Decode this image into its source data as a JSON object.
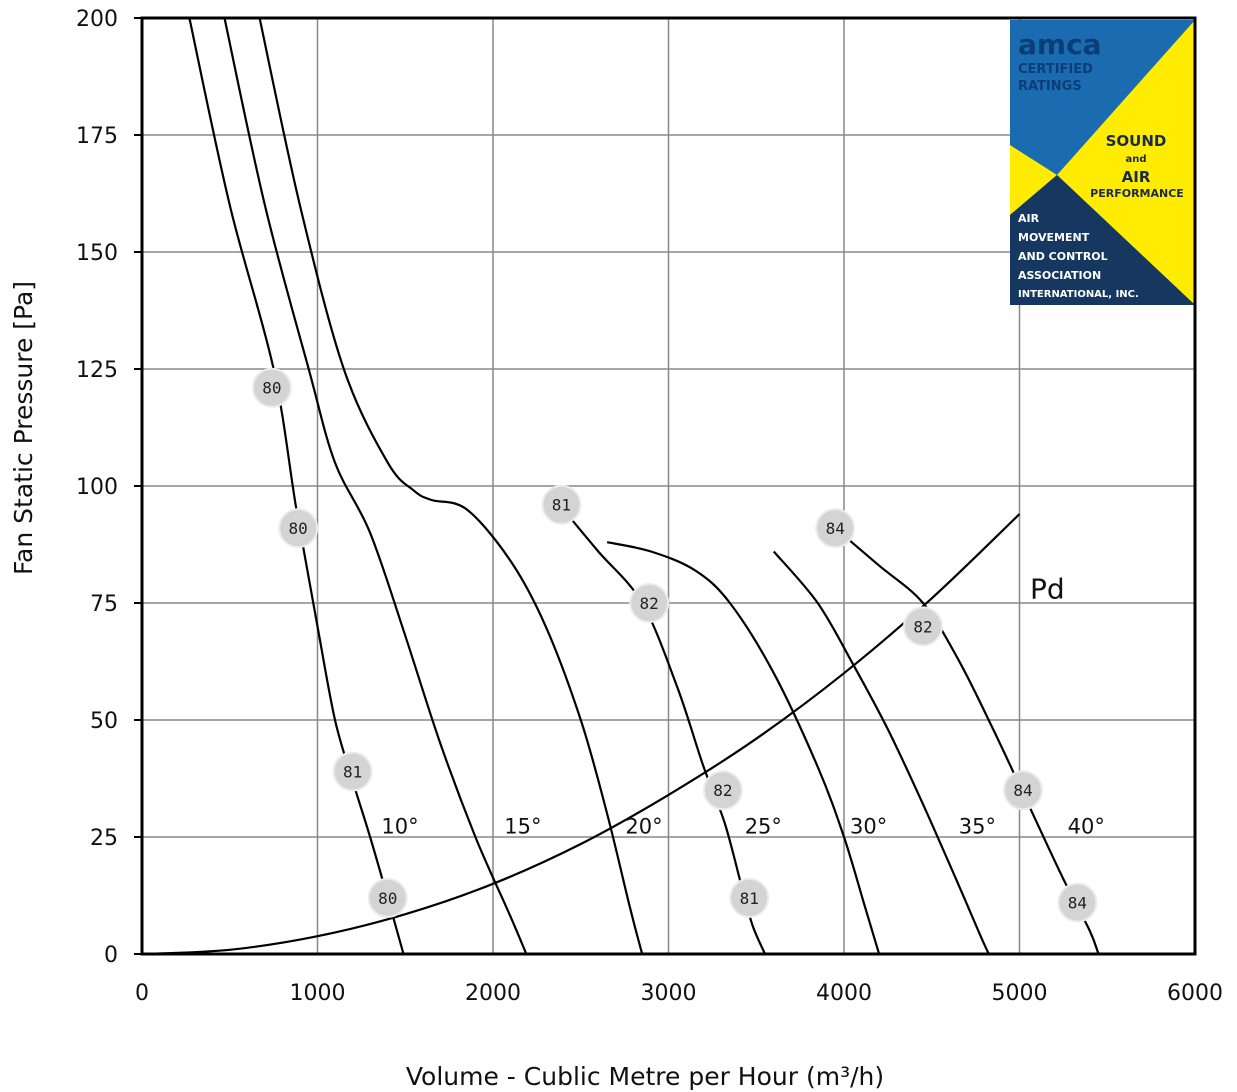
{
  "chart_data": {
    "type": "line",
    "xlabel": "Volume - Cublic Metre per Hour (m³/h)",
    "ylabel": "Fan Static Pressure [Pa]",
    "xlim": [
      0,
      6000
    ],
    "ylim": [
      0,
      200
    ],
    "x_ticks": [
      "0",
      "1000",
      "2000",
      "3000",
      "4000",
      "5000",
      "6000"
    ],
    "y_ticks": [
      "0",
      "25",
      "50",
      "75",
      "100",
      "125",
      "150",
      "175",
      "200"
    ],
    "grid": true,
    "series": [
      {
        "name": "10°",
        "points": [
          [
            270,
            200
          ],
          [
            500,
            160
          ],
          [
            750,
            125
          ],
          [
            880,
            95
          ],
          [
            1000,
            70
          ],
          [
            1100,
            50
          ],
          [
            1200,
            37
          ],
          [
            1300,
            25
          ],
          [
            1400,
            12
          ],
          [
            1490,
            0
          ]
        ]
      },
      {
        "name": "15°",
        "points": [
          [
            470,
            200
          ],
          [
            700,
            160
          ],
          [
            950,
            125
          ],
          [
            1100,
            105
          ],
          [
            1300,
            90
          ],
          [
            1500,
            68
          ],
          [
            1700,
            45
          ],
          [
            1900,
            25
          ],
          [
            2100,
            8
          ],
          [
            2190,
            0
          ]
        ]
      },
      {
        "name": "20°",
        "points": [
          [
            670,
            200
          ],
          [
            900,
            160
          ],
          [
            1150,
            125
          ],
          [
            1400,
            105
          ],
          [
            1550,
            99
          ],
          [
            1650,
            97
          ],
          [
            1850,
            95
          ],
          [
            2100,
            84
          ],
          [
            2300,
            70
          ],
          [
            2500,
            50
          ],
          [
            2650,
            30
          ],
          [
            2780,
            10
          ],
          [
            2850,
            0
          ]
        ]
      },
      {
        "name": "25°",
        "points": [
          [
            2400,
            95
          ],
          [
            2600,
            86
          ],
          [
            2850,
            75
          ],
          [
            3050,
            57
          ],
          [
            3200,
            40
          ],
          [
            3320,
            28
          ],
          [
            3420,
            14
          ],
          [
            3480,
            6
          ],
          [
            3550,
            0
          ]
        ]
      },
      {
        "name": "30°",
        "points": [
          [
            2650,
            88
          ],
          [
            2900,
            86
          ],
          [
            3150,
            82
          ],
          [
            3350,
            75
          ],
          [
            3600,
            60
          ],
          [
            3850,
            40
          ],
          [
            4000,
            25
          ],
          [
            4120,
            10
          ],
          [
            4200,
            0
          ]
        ]
      },
      {
        "name": "35°",
        "points": [
          [
            3600,
            86
          ],
          [
            3850,
            75
          ],
          [
            4050,
            62
          ],
          [
            4250,
            48
          ],
          [
            4450,
            32
          ],
          [
            4650,
            15
          ],
          [
            4800,
            2
          ],
          [
            4830,
            0
          ]
        ]
      },
      {
        "name": "40°",
        "points": [
          [
            3950,
            91
          ],
          [
            4200,
            83
          ],
          [
            4450,
            75
          ],
          [
            4650,
            63
          ],
          [
            4850,
            48
          ],
          [
            5050,
            32
          ],
          [
            5250,
            16
          ],
          [
            5400,
            5
          ],
          [
            5450,
            0
          ]
        ]
      },
      {
        "name": "Pd",
        "points": [
          [
            0,
            0
          ],
          [
            500,
            0.9
          ],
          [
            1000,
            3.8
          ],
          [
            1500,
            8.5
          ],
          [
            2000,
            15
          ],
          [
            2500,
            23.5
          ],
          [
            3000,
            34
          ],
          [
            3500,
            46
          ],
          [
            4000,
            60
          ],
          [
            4500,
            76
          ],
          [
            5000,
            94
          ]
        ]
      }
    ],
    "angle_labels": [
      {
        "text": "10°",
        "x": 1330,
        "y": 27
      },
      {
        "text": "15°",
        "x": 2030,
        "y": 27
      },
      {
        "text": "20°",
        "x": 2720,
        "y": 27
      },
      {
        "text": "25°",
        "x": 3400,
        "y": 27
      },
      {
        "text": "30°",
        "x": 4000,
        "y": 27
      },
      {
        "text": "35°",
        "x": 4620,
        "y": 27
      },
      {
        "text": "40°",
        "x": 5240,
        "y": 27
      }
    ],
    "pd_label": {
      "text": "Pd",
      "x": 5060,
      "y": 76
    },
    "sound_markers": [
      {
        "text": "80",
        "x": 740,
        "y": 121
      },
      {
        "text": "80",
        "x": 890,
        "y": 91
      },
      {
        "text": "81",
        "x": 1200,
        "y": 39
      },
      {
        "text": "80",
        "x": 1400,
        "y": 12
      },
      {
        "text": "81",
        "x": 2390,
        "y": 96
      },
      {
        "text": "82",
        "x": 2890,
        "y": 75
      },
      {
        "text": "82",
        "x": 3310,
        "y": 35
      },
      {
        "text": "81",
        "x": 3460,
        "y": 12
      },
      {
        "text": "84",
        "x": 3950,
        "y": 91
      },
      {
        "text": "82",
        "x": 4450,
        "y": 70
      },
      {
        "text": "84",
        "x": 5020,
        "y": 35
      },
      {
        "text": "84",
        "x": 5330,
        "y": 11
      }
    ],
    "colors": {
      "line": "#000000",
      "grid": "#888888",
      "marker_fill": "#d4d4d4"
    }
  },
  "logo": {
    "brand": "amca",
    "certified_line1": "CERTIFIED",
    "certified_line2": "RATINGS",
    "sound": "SOUND",
    "and": "and",
    "air": "AIR",
    "performance": "PERFORMANCE",
    "assoc_line1": "AIR",
    "assoc_line2": "MOVEMENT",
    "assoc_line3": "AND CONTROL",
    "assoc_line4": "ASSOCIATION",
    "assoc_line5": "INTERNATIONAL, INC.",
    "blue": "#1a6bb0",
    "dark_blue": "#16375f",
    "yellow": "#ffec00"
  }
}
